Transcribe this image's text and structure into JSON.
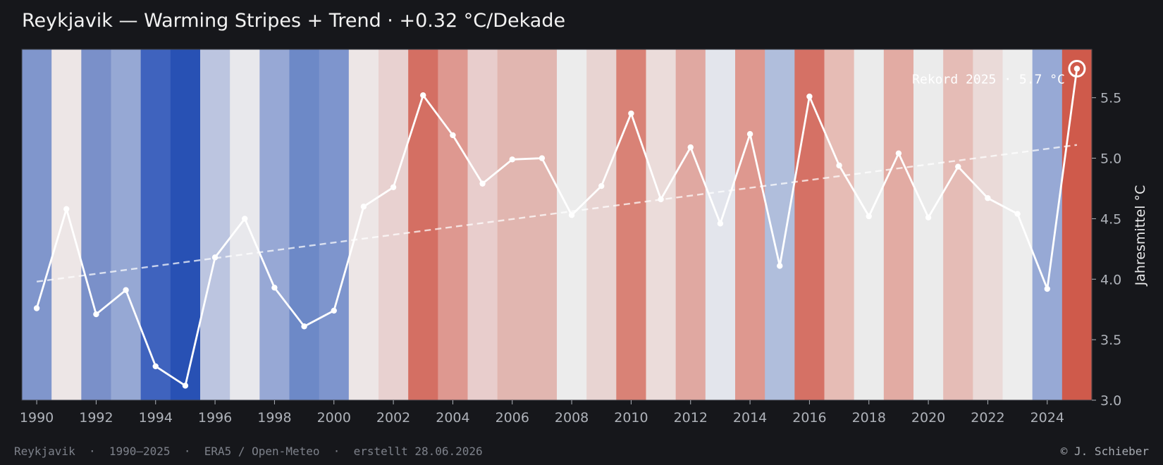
{
  "title": "Reykjavik — Warming Stripes + Trend  ·  +0.32 °C/Dekade",
  "footer": {
    "left": "Reykjavik  ·  1990–2025  ·  ERA5 / Open-Meteo  ·  erstellt 28.06.2026",
    "right": "© J. Schieber"
  },
  "colors": {
    "background": "#16171b",
    "line": "#ffffff",
    "trend": "#ffffff",
    "axis_text": "#aeb2b9"
  },
  "chart_data": {
    "type": "line",
    "title": "Reykjavik — Warming Stripes + Trend  ·  +0.32 °C/Dekade",
    "xlabel": "",
    "ylabel": "Jahresmittel °C",
    "x": [
      1990,
      1991,
      1992,
      1993,
      1994,
      1995,
      1996,
      1997,
      1998,
      1999,
      2000,
      2001,
      2002,
      2003,
      2004,
      2005,
      2006,
      2007,
      2008,
      2009,
      2010,
      2011,
      2012,
      2013,
      2014,
      2015,
      2016,
      2017,
      2018,
      2019,
      2020,
      2021,
      2022,
      2023,
      2024,
      2025
    ],
    "series": [
      {
        "values": [
          3.76,
          4.58,
          3.71,
          3.91,
          3.28,
          3.12,
          4.18,
          4.5,
          3.93,
          3.61,
          3.74,
          4.6,
          4.76,
          5.52,
          5.19,
          4.79,
          4.99,
          5.0,
          4.53,
          4.77,
          5.37,
          4.66,
          5.09,
          4.46,
          5.2,
          4.11,
          5.51,
          4.94,
          4.52,
          5.04,
          4.51,
          4.93,
          4.67,
          4.54,
          3.92,
          5.74
        ]
      }
    ],
    "stripe_colors": [
      "#8096cc",
      "#ede6e6",
      "#7a90c9",
      "#96a8d4",
      "#3f63be",
      "#2851b4",
      "#bcc5e0",
      "#e8e8ec",
      "#97a8d5",
      "#6d89c7",
      "#7e95cd",
      "#ede6e6",
      "#e8d1d0",
      "#d46f63",
      "#de9890",
      "#e8cdcc",
      "#e1b6b0",
      "#e1b6b0",
      "#ececec",
      "#e8d4d2",
      "#d98276",
      "#ebdcda",
      "#e0a8a1",
      "#e3e5ec",
      "#de988f",
      "#b0bedc",
      "#d57165",
      "#e6bcb5",
      "#ebebeb",
      "#e2aba3",
      "#ebebeb",
      "#e5bcb6",
      "#eadad8",
      "#ededed",
      "#97a9d5",
      "#cf5a4b"
    ],
    "trend": {
      "start": 3.98,
      "end": 5.11
    },
    "record": {
      "year": 2025,
      "value": 5.74,
      "label": "Rekord 2025 · 5.7 °C"
    },
    "xticks": [
      "1990",
      "1992",
      "1994",
      "1996",
      "1998",
      "2000",
      "2002",
      "2004",
      "2006",
      "2008",
      "2010",
      "2012",
      "2014",
      "2016",
      "2018",
      "2020",
      "2022",
      "2024"
    ],
    "yticks": [
      "3.0",
      "3.5",
      "4.0",
      "4.5",
      "5.0",
      "5.5"
    ],
    "xlim": [
      1989.5,
      2025.5
    ],
    "ylim": [
      3.0,
      5.9
    ],
    "grid": false,
    "legend": "none"
  }
}
